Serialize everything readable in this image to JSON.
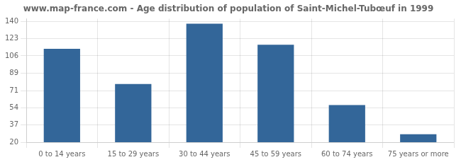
{
  "chart_data": {
    "type": "bar",
    "title": "www.map-france.com - Age distribution of population of Saint-Michel-Tubœuf in 1999",
    "categories": [
      "0 to 14 years",
      "15 to 29 years",
      "30 to 44 years",
      "45 to 59 years",
      "60 to 74 years",
      "75 years or more"
    ],
    "values": [
      113,
      78,
      138,
      117,
      57,
      28
    ],
    "color": "#336699",
    "ylim": [
      20,
      143
    ],
    "yticks": [
      20,
      37,
      54,
      71,
      89,
      106,
      123,
      140
    ],
    "grid": true
  }
}
